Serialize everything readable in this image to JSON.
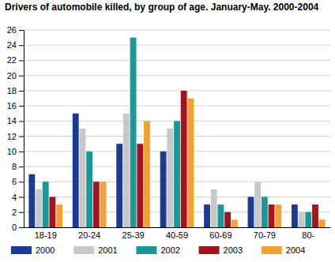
{
  "chart_data": {
    "type": "bar",
    "title": "Drivers of automobile killed, by group of age. January-May. 2000-2004",
    "categories": [
      "18-19",
      "20-24",
      "25-39",
      "40-59",
      "60-69",
      "70-79",
      "80-"
    ],
    "series": [
      {
        "name": "2000",
        "color": "#1c3a94",
        "values": [
          7,
          15,
          11,
          10,
          3,
          4,
          3
        ]
      },
      {
        "name": "2001",
        "color": "#c8c8c8",
        "values": [
          5,
          13,
          15,
          13,
          5,
          6,
          2
        ]
      },
      {
        "name": "2002",
        "color": "#1a9898",
        "values": [
          6,
          10,
          25,
          14,
          3,
          4,
          2
        ]
      },
      {
        "name": "2003",
        "color": "#a3141c",
        "values": [
          4,
          6,
          11,
          18,
          2,
          3,
          3
        ]
      },
      {
        "name": "2004",
        "color": "#f5a033",
        "values": [
          3,
          6,
          14,
          17,
          1,
          3,
          1
        ]
      }
    ],
    "ylim": [
      0,
      26
    ],
    "yticks": [
      0,
      2,
      4,
      6,
      8,
      10,
      12,
      14,
      16,
      18,
      20,
      22,
      24,
      26
    ],
    "grid": true,
    "legend": "bottom"
  }
}
